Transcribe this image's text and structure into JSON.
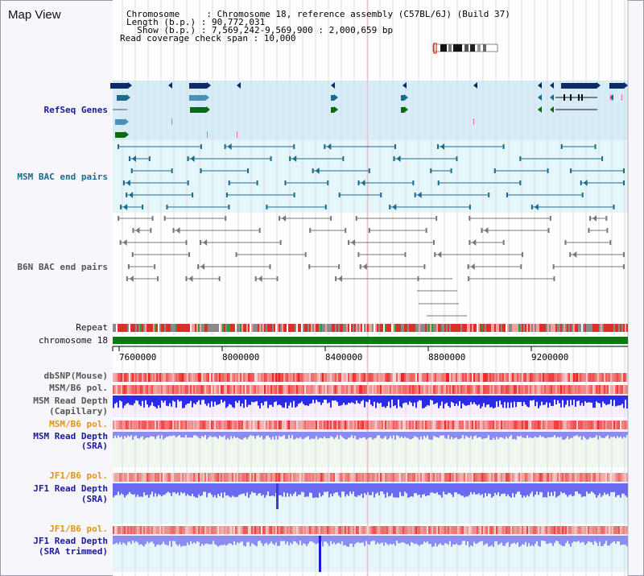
{
  "header": {
    "title": "Map View",
    "lines": [
      "Chromosome     : Chromosome 18, reference assembly (C57BL/6J) (Build 37)",
      "Length (b.p.) : 90,772,031",
      "  Show (b.p.) : 7,569,242-9,569,900 : 2,000,659 bp",
      "Read coverage check span : 10,000"
    ]
  },
  "tracks": {
    "refseq": "RefSeq Genes",
    "msm_bac": "MSM BAC end pairs",
    "b6n_bac": "B6N BAC end pairs",
    "repeat": "Repeat",
    "chromosome": "chromosome 18",
    "dbsnp": "dbSNP(Mouse)",
    "msm_b6_pol_1": "MSM/B6 pol.",
    "msm_read_depth_cap_1": "MSM Read Depth",
    "msm_read_depth_cap_2": "(Capillary)",
    "msm_b6_pol_2": "MSM/B6 pol.",
    "msm_read_depth_sra_1": "MSM Read Depth",
    "msm_read_depth_sra_2": "(SRA)",
    "jf1_b6_pol_1": "JF1/B6 pol.",
    "jf1_read_depth_sra_1": "JF1 Read Depth",
    "jf1_read_depth_sra_2": "(SRA)",
    "jf1_b6_pol_2": "JF1/B6 pol.",
    "jf1_read_depth_trim_1": "JF1 Read Depth",
    "jf1_read_depth_trim_2": "(SRA trimmed)"
  },
  "axis": {
    "ticks": [
      "7600000",
      "8000000",
      "8400000",
      "8800000",
      "9200000"
    ]
  },
  "colors": {
    "refseq_bg": "#d6ecf6",
    "bac_bg": "#e5f6f8",
    "navy": "#0d2a6b",
    "teal": "#1a6b8c",
    "green": "#0c6b10",
    "chrom": "#0b7a0b",
    "pol_red": "#e8121b",
    "depth_blue": "#2a2ae8",
    "depth_light": "#8c8cf0"
  }
}
